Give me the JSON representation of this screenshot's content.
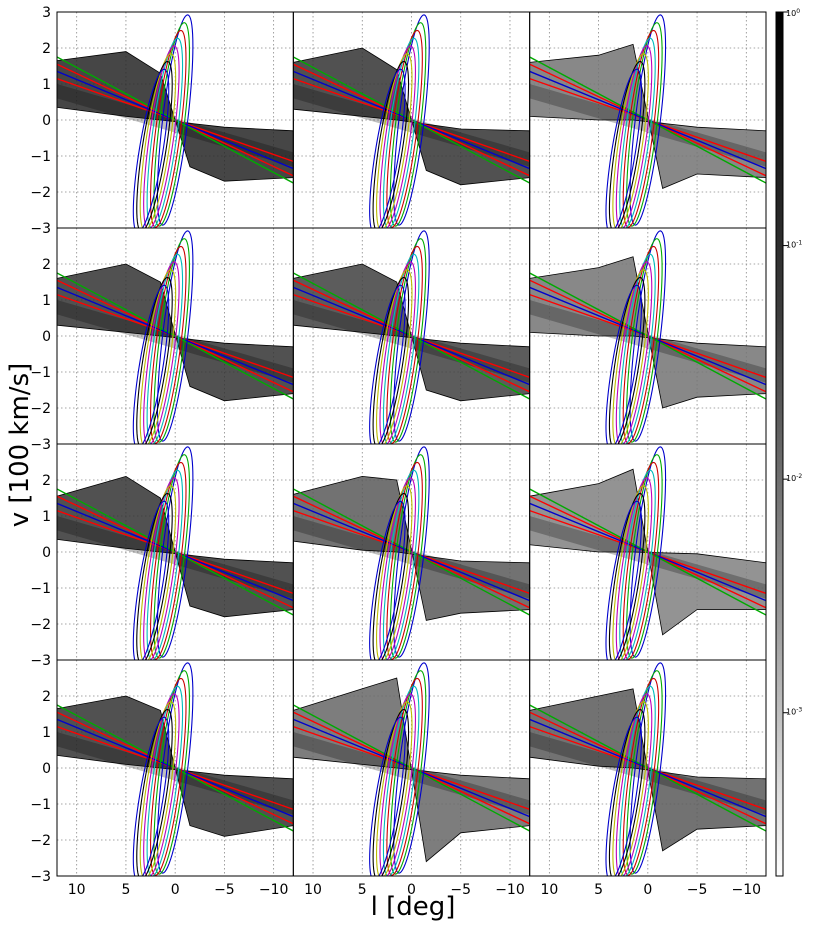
{
  "chart_data": {
    "type": "line",
    "layout": {
      "rows": 4,
      "cols": 3
    },
    "xlabel": "l [deg]",
    "ylabel": "v [100 km/s]",
    "xlim": [
      12,
      -12
    ],
    "ylim": [
      -3,
      3
    ],
    "x_ticks": [
      10,
      5,
      0,
      -5,
      -10
    ],
    "x_tick_labels": [
      "10",
      "5",
      "0",
      "−5",
      "−10"
    ],
    "y_ticks": [
      3,
      2,
      1,
      0,
      -1,
      -2,
      -3
    ],
    "y_tick_labels": [
      "3",
      "2",
      "1",
      "0",
      "−1",
      "−2",
      "−3"
    ],
    "grid": true,
    "colorbar": {
      "scale": "log",
      "range": [
        0.0002,
        1
      ],
      "ticks": [
        1,
        0.1,
        0.01,
        0.001
      ],
      "tick_labels": [
        {
          "base": "10",
          "exp": "0"
        },
        {
          "base": "10",
          "exp": "-1"
        },
        {
          "base": "10",
          "exp": "-2"
        },
        {
          "base": "10",
          "exp": "-3"
        }
      ]
    },
    "series_colors": [
      "#0000cc",
      "#00aa00",
      "#cc0000",
      "#00bbbb",
      "#bb00bb",
      "#bbbb00",
      "#000000"
    ],
    "overlay": {
      "straight_lines": [
        {
          "color": "#ff0000",
          "points": [
            [
              12,
              1.55
            ],
            [
              -12,
              -1.55
            ]
          ]
        },
        {
          "color": "#ff0000",
          "points": [
            [
              12,
              1.15
            ],
            [
              -12,
              -1.15
            ]
          ]
        },
        {
          "color": "#0000cc",
          "points": [
            [
              12,
              1.35
            ],
            [
              -12,
              -1.35
            ]
          ]
        },
        {
          "color": "#00aa00",
          "points": [
            [
              12,
              1.75
            ],
            [
              -12,
              -1.75
            ]
          ]
        }
      ],
      "ellipses": [
        {
          "dx": 0.0,
          "amp": 2.65,
          "color": "#0000cc"
        },
        {
          "dx": 0.35,
          "amp": 2.55,
          "color": "#00aa00"
        },
        {
          "dx": 0.7,
          "amp": 2.45,
          "color": "#cc0000"
        },
        {
          "dx": 1.05,
          "amp": 2.35,
          "color": "#00bbbb"
        },
        {
          "dx": 1.4,
          "amp": 2.25,
          "color": "#bb00bb"
        },
        {
          "dx": 1.75,
          "amp": 2.15,
          "color": "#bbbb00"
        },
        {
          "dx": 2.1,
          "amp": 2.05,
          "color": "#000000"
        },
        {
          "dx": 2.45,
          "amp": 1.95,
          "color": "#0000cc"
        }
      ]
    },
    "panels": [
      {
        "row": 0,
        "col": 0,
        "envelope": [
          [
            12,
            1.65
          ],
          [
            5,
            1.9
          ],
          [
            1.5,
            1.3
          ],
          [
            -1.5,
            -1.3
          ],
          [
            -5,
            -1.7
          ],
          [
            -12,
            -1.6
          ],
          [
            -12,
            -0.3
          ],
          [
            -5,
            -0.2
          ],
          [
            1.5,
            0.0
          ],
          [
            5,
            0.1
          ],
          [
            12,
            0.35
          ]
        ],
        "core_dark": 0.85
      },
      {
        "row": 0,
        "col": 1,
        "envelope": [
          [
            12,
            1.6
          ],
          [
            5,
            2.0
          ],
          [
            1.5,
            1.4
          ],
          [
            -1.5,
            -1.4
          ],
          [
            -5,
            -1.8
          ],
          [
            -12,
            -1.6
          ],
          [
            -12,
            -0.3
          ],
          [
            -5,
            -0.25
          ],
          [
            1.5,
            0.0
          ],
          [
            5,
            0.1
          ],
          [
            12,
            0.3
          ]
        ],
        "core_dark": 0.8
      },
      {
        "row": 0,
        "col": 2,
        "envelope": [
          [
            12,
            1.6
          ],
          [
            5,
            1.8
          ],
          [
            1.5,
            2.1
          ],
          [
            -1.5,
            -1.9
          ],
          [
            -5,
            -1.5
          ],
          [
            -12,
            -1.6
          ],
          [
            -12,
            -0.3
          ],
          [
            -5,
            -0.2
          ],
          [
            1.5,
            0.0
          ],
          [
            5,
            0.0
          ],
          [
            12,
            0.1
          ]
        ],
        "core_dark": 0.55
      },
      {
        "row": 1,
        "col": 0,
        "envelope": [
          [
            12,
            1.6
          ],
          [
            5,
            2.0
          ],
          [
            1.5,
            1.5
          ],
          [
            -1.5,
            -1.4
          ],
          [
            -5,
            -1.8
          ],
          [
            -12,
            -1.6
          ],
          [
            -12,
            -0.3
          ],
          [
            -5,
            -0.2
          ],
          [
            1.5,
            0.0
          ],
          [
            5,
            0.1
          ],
          [
            12,
            0.3
          ]
        ],
        "core_dark": 0.8
      },
      {
        "row": 1,
        "col": 1,
        "envelope": [
          [
            12,
            1.6
          ],
          [
            5,
            2.0
          ],
          [
            1.5,
            1.5
          ],
          [
            -1.5,
            -1.5
          ],
          [
            -5,
            -1.8
          ],
          [
            -12,
            -1.6
          ],
          [
            -12,
            -0.3
          ],
          [
            -5,
            -0.2
          ],
          [
            1.5,
            0.0
          ],
          [
            5,
            0.1
          ],
          [
            12,
            0.3
          ]
        ],
        "core_dark": 0.75
      },
      {
        "row": 1,
        "col": 2,
        "envelope": [
          [
            12,
            1.6
          ],
          [
            5,
            1.9
          ],
          [
            1.5,
            2.2
          ],
          [
            -1.5,
            -2.0
          ],
          [
            -5,
            -1.7
          ],
          [
            -12,
            -1.6
          ],
          [
            -12,
            -0.3
          ],
          [
            -5,
            -0.2
          ],
          [
            1.5,
            0.0
          ],
          [
            5,
            0.0
          ],
          [
            12,
            0.1
          ]
        ],
        "core_dark": 0.55
      },
      {
        "row": 2,
        "col": 0,
        "envelope": [
          [
            12,
            1.55
          ],
          [
            5,
            2.1
          ],
          [
            1.5,
            1.5
          ],
          [
            -1.5,
            -1.5
          ],
          [
            -5,
            -1.8
          ],
          [
            -12,
            -1.6
          ],
          [
            -12,
            -0.3
          ],
          [
            -5,
            -0.2
          ],
          [
            1.5,
            0.0
          ],
          [
            5,
            0.1
          ],
          [
            12,
            0.35
          ]
        ],
        "core_dark": 0.8
      },
      {
        "row": 2,
        "col": 1,
        "envelope": [
          [
            12,
            1.6
          ],
          [
            5,
            2.1
          ],
          [
            1.5,
            2.0
          ],
          [
            -1.5,
            -1.9
          ],
          [
            -5,
            -1.7
          ],
          [
            -12,
            -1.6
          ],
          [
            -12,
            -0.3
          ],
          [
            -5,
            -0.25
          ],
          [
            1.5,
            0.0
          ],
          [
            5,
            0.05
          ],
          [
            12,
            0.3
          ]
        ],
        "core_dark": 0.65
      },
      {
        "row": 2,
        "col": 2,
        "envelope": [
          [
            12,
            1.55
          ],
          [
            5,
            1.9
          ],
          [
            1.5,
            2.3
          ],
          [
            -1.5,
            -2.3
          ],
          [
            -5,
            -1.6
          ],
          [
            -12,
            -1.6
          ],
          [
            -12,
            -0.3
          ],
          [
            -5,
            -0.05
          ],
          [
            1.5,
            0.0
          ],
          [
            5,
            0.0
          ],
          [
            12,
            0.2
          ]
        ],
        "core_dark": 0.5
      },
      {
        "row": 3,
        "col": 0,
        "envelope": [
          [
            12,
            1.65
          ],
          [
            5,
            2.0
          ],
          [
            1.5,
            1.6
          ],
          [
            -1.5,
            -1.6
          ],
          [
            -5,
            -1.9
          ],
          [
            -12,
            -1.6
          ],
          [
            -12,
            -0.3
          ],
          [
            -5,
            -0.2
          ],
          [
            1.5,
            0.0
          ],
          [
            5,
            0.1
          ],
          [
            12,
            0.35
          ]
        ],
        "core_dark": 0.8
      },
      {
        "row": 3,
        "col": 1,
        "envelope": [
          [
            12,
            1.6
          ],
          [
            5,
            2.2
          ],
          [
            1.5,
            2.5
          ],
          [
            -1.5,
            -2.6
          ],
          [
            -5,
            -1.8
          ],
          [
            -12,
            -1.6
          ],
          [
            -12,
            -0.3
          ],
          [
            -5,
            -0.2
          ],
          [
            1.5,
            0.0
          ],
          [
            5,
            0.1
          ],
          [
            12,
            0.3
          ]
        ],
        "core_dark": 0.6
      },
      {
        "row": 3,
        "col": 2,
        "envelope": [
          [
            12,
            1.6
          ],
          [
            5,
            2.0
          ],
          [
            1.5,
            2.2
          ],
          [
            -1.5,
            -2.3
          ],
          [
            -5,
            -1.7
          ],
          [
            -12,
            -1.6
          ],
          [
            -12,
            -0.3
          ],
          [
            -5,
            -0.25
          ],
          [
            1.5,
            0.0
          ],
          [
            5,
            0.05
          ],
          [
            12,
            0.3
          ]
        ],
        "core_dark": 0.65
      }
    ]
  }
}
